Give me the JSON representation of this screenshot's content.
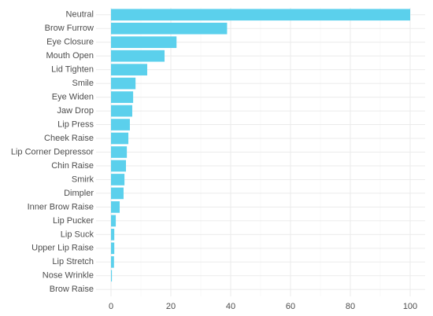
{
  "chart_data": {
    "type": "barh",
    "categories": [
      "Neutral",
      "Brow Furrow",
      "Eye Closure",
      "Mouth Open",
      "Lid Tighten",
      "Smile",
      "Eye Widen",
      "Jaw Drop",
      "Lip Press",
      "Cheek Raise",
      "Lip Corner Depressor",
      "Chin Raise",
      "Smirk",
      "Dimpler",
      "Inner Brow Raise",
      "Lip Pucker",
      "Lip Suck",
      "Upper Lip Raise",
      "Lip Stretch",
      "Nose Wrinkle",
      "Brow Raise"
    ],
    "values": [
      100,
      38.8,
      21.9,
      17.9,
      12.1,
      8.2,
      7.4,
      7.1,
      6.3,
      5.8,
      5.3,
      5.0,
      4.5,
      4.2,
      2.9,
      1.6,
      1.1,
      1.1,
      1.0,
      0.3,
      0
    ],
    "color": "#5bd0ec",
    "xlim": [
      -5,
      105
    ],
    "xticks": [
      0,
      20,
      40,
      60,
      80,
      100
    ],
    "xminorticks": [
      10,
      30,
      50,
      70,
      90
    ],
    "grid": true
  }
}
